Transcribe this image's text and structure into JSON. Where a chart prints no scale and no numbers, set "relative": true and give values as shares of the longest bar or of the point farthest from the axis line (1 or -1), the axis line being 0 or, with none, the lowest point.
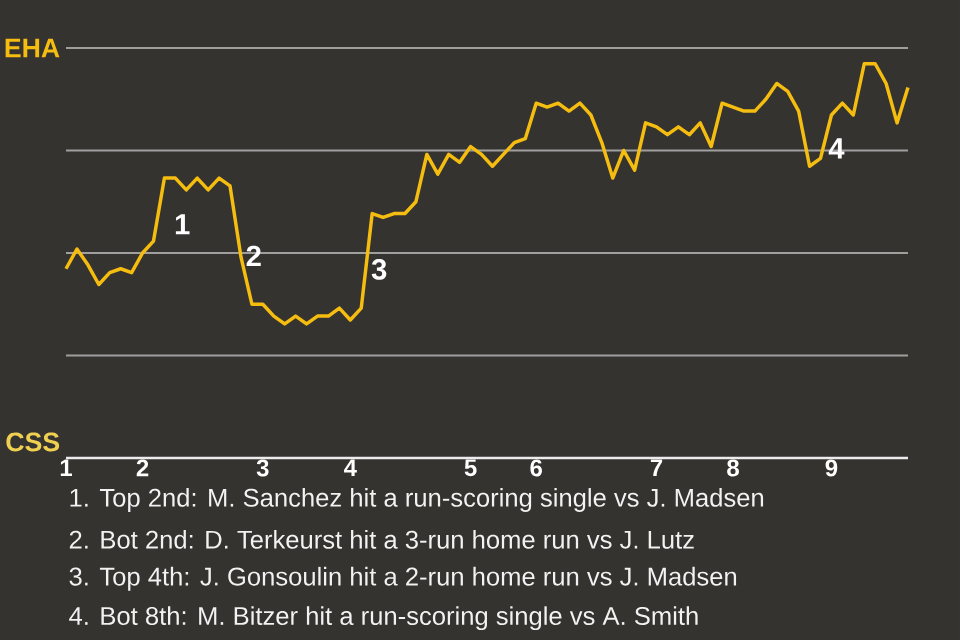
{
  "chart_data": {
    "type": "line",
    "relative": true,
    "categories": [
      "1",
      null,
      null,
      null,
      null,
      null,
      null,
      "2",
      null,
      null,
      null,
      null,
      null,
      null,
      null,
      null,
      null,
      null,
      "3",
      null,
      null,
      null,
      null,
      null,
      null,
      null,
      "4",
      null,
      null,
      null,
      null,
      null,
      null,
      null,
      null,
      null,
      null,
      "5",
      null,
      null,
      null,
      null,
      null,
      "6",
      null,
      null,
      null,
      null,
      null,
      null,
      null,
      null,
      null,
      null,
      "7",
      null,
      null,
      null,
      null,
      null,
      null,
      "8",
      null,
      null,
      null,
      null,
      null,
      null,
      null,
      null,
      "9",
      null,
      null,
      null,
      null,
      null,
      null,
      null
    ],
    "series": [
      {
        "color": "#f5bd10",
        "values": [
          0.48,
          0.53,
          0.49,
          0.44,
          0.47,
          0.48,
          0.47,
          0.52,
          0.55,
          0.71,
          0.71,
          0.68,
          0.71,
          0.68,
          0.71,
          0.69,
          0.51,
          0.39,
          0.39,
          0.36,
          0.34,
          0.36,
          0.34,
          0.36,
          0.36,
          0.38,
          0.35,
          0.38,
          0.62,
          0.61,
          0.62,
          0.62,
          0.65,
          0.77,
          0.72,
          0.77,
          0.75,
          0.79,
          0.77,
          0.74,
          0.77,
          0.8,
          0.81,
          0.9,
          0.89,
          0.9,
          0.88,
          0.9,
          0.87,
          0.8,
          0.71,
          0.78,
          0.73,
          0.85,
          0.84,
          0.82,
          0.84,
          0.82,
          0.85,
          0.79,
          0.9,
          0.89,
          0.88,
          0.88,
          0.91,
          0.95,
          0.93,
          0.88,
          0.74,
          0.76,
          0.87,
          0.9,
          0.87,
          1,
          1,
          0.95,
          0.85,
          0.94
        ]
      }
    ],
    "grid": "y",
    "marker": "none",
    "line_style": "solid",
    "annotations": [
      "EHA",
      "CSS",
      "1",
      "2",
      "3",
      "4",
      "1. Top 2nd: M. Sanchez hit a run-scoring single vs J. Madsen",
      "2. Bot 2nd: D. Terkeurst hit a 3-run home run vs J. Lutz",
      "3. Top 4th: J. Gonsoulin hit a 2-run home run vs J. Madsen",
      "4. Bot 8th: M. Bitzer hit a run-scoring single vs A. Smith"
    ]
  }
}
